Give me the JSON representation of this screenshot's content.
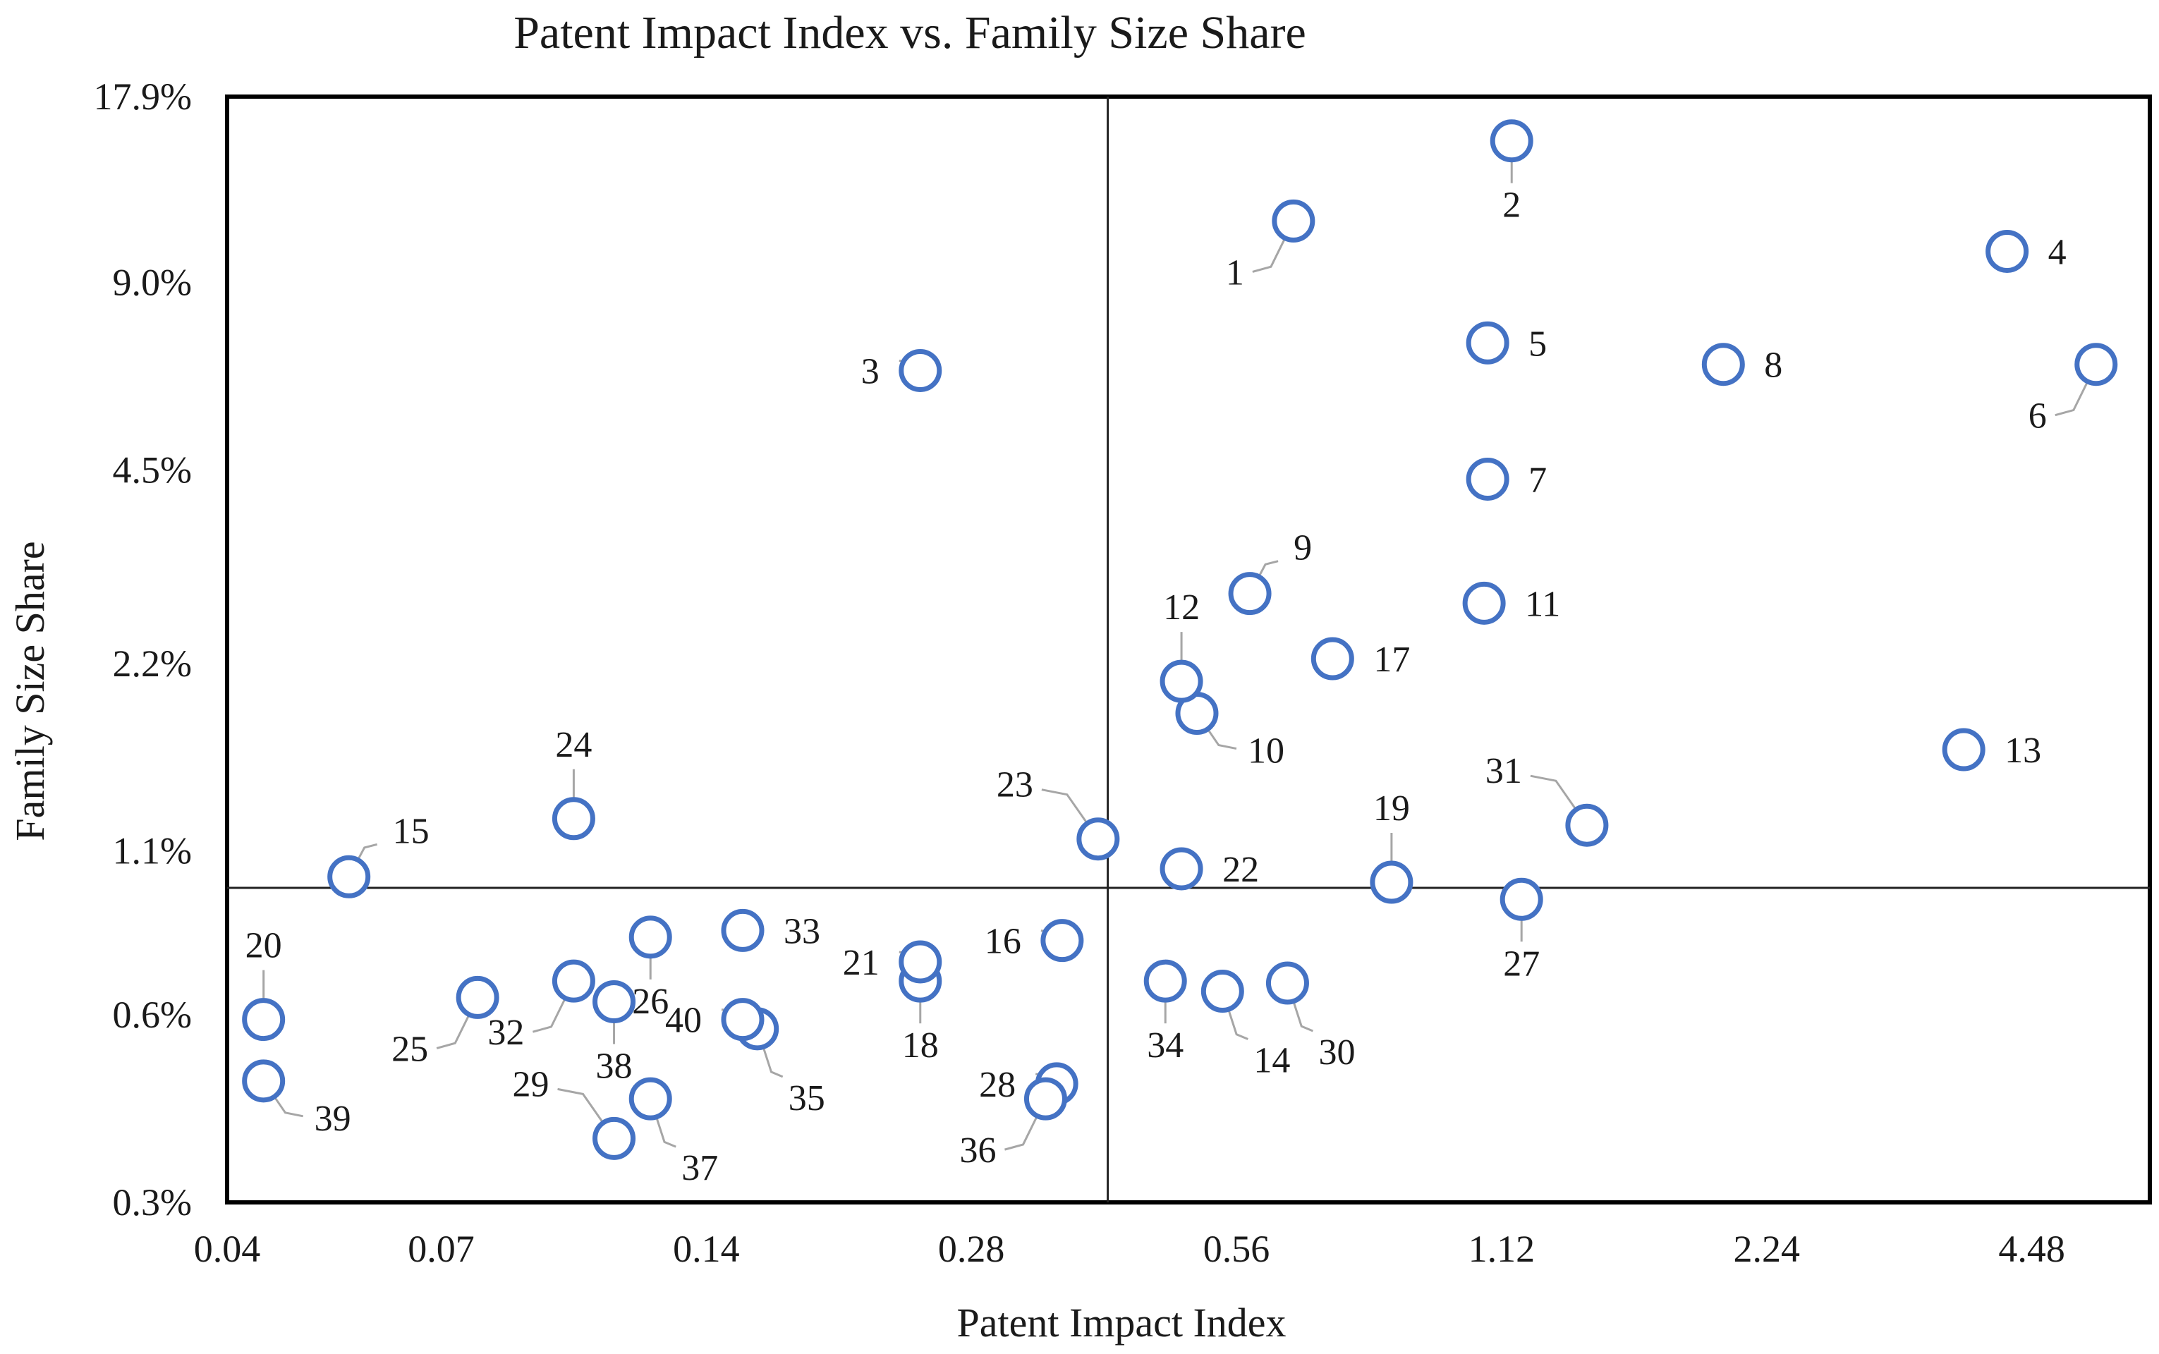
{
  "chart_data": {
    "type": "scatter",
    "title": "Patent Impact Index vs. Family Size Share",
    "xlabel": "Patent Impact Index",
    "ylabel": "Family Size Share",
    "x_scale": "log2",
    "y_scale": "log",
    "xlim": [
      0.04,
      6.1
    ],
    "ylim": [
      0.003,
      0.179
    ],
    "x_ticks": [
      {
        "value": 0.04,
        "label": "0.04"
      },
      {
        "value": 0.07,
        "label": "0.07"
      },
      {
        "value": 0.14,
        "label": "0.14"
      },
      {
        "value": 0.28,
        "label": "0.28"
      },
      {
        "value": 0.56,
        "label": "0.56"
      },
      {
        "value": 1.12,
        "label": "1.12"
      },
      {
        "value": 2.24,
        "label": "2.24"
      },
      {
        "value": 4.48,
        "label": "4.48"
      }
    ],
    "y_ticks": [
      {
        "value": 0.003,
        "label": "0.3%"
      },
      {
        "value": 0.006,
        "label": "0.6%"
      },
      {
        "value": 0.011,
        "label": "1.1%"
      },
      {
        "value": 0.022,
        "label": "2.2%"
      },
      {
        "value": 0.045,
        "label": "4.5%"
      },
      {
        "value": 0.09,
        "label": "9.0%"
      },
      {
        "value": 0.179,
        "label": "17.9%"
      }
    ],
    "quadrant_lines": {
      "x": 0.4,
      "y": 0.0096
    },
    "grid": false,
    "marker": {
      "shape": "hollow-circle",
      "color": "#4472c4"
    },
    "points": [
      {
        "label": "1",
        "x": 0.65,
        "y": 0.113,
        "label_pos": "lower-left"
      },
      {
        "label": "2",
        "x": 1.15,
        "y": 0.152,
        "label_pos": "below"
      },
      {
        "label": "3",
        "x": 0.245,
        "y": 0.065,
        "label_pos": "left"
      },
      {
        "label": "4",
        "x": 4.2,
        "y": 0.101,
        "label_pos": "right"
      },
      {
        "label": "5",
        "x": 1.08,
        "y": 0.072,
        "label_pos": "right"
      },
      {
        "label": "6",
        "x": 5.3,
        "y": 0.0665,
        "label_pos": "lower-left"
      },
      {
        "label": "7",
        "x": 1.08,
        "y": 0.0435,
        "label_pos": "right"
      },
      {
        "label": "8",
        "x": 2.0,
        "y": 0.0665,
        "label_pos": "right"
      },
      {
        "label": "9",
        "x": 0.58,
        "y": 0.0285,
        "label_pos": "upper-right"
      },
      {
        "label": "10",
        "x": 0.505,
        "y": 0.0183,
        "label_pos": "lower-right"
      },
      {
        "label": "11",
        "x": 1.07,
        "y": 0.0275,
        "label_pos": "right"
      },
      {
        "label": "12",
        "x": 0.485,
        "y": 0.0206,
        "label_pos": "above"
      },
      {
        "label": "13",
        "x": 3.75,
        "y": 0.016,
        "label_pos": "right"
      },
      {
        "label": "14",
        "x": 0.54,
        "y": 0.00655,
        "label_pos": "below-right"
      },
      {
        "label": "15",
        "x": 0.055,
        "y": 0.01,
        "label_pos": "upper-right"
      },
      {
        "label": "16",
        "x": 0.355,
        "y": 0.0079,
        "label_pos": "left"
      },
      {
        "label": "17",
        "x": 0.72,
        "y": 0.0224,
        "label_pos": "right"
      },
      {
        "label": "18",
        "x": 0.245,
        "y": 0.0068,
        "label_pos": "below"
      },
      {
        "label": "19",
        "x": 0.84,
        "y": 0.0098,
        "label_pos": "above"
      },
      {
        "label": "20",
        "x": 0.044,
        "y": 0.0059,
        "label_pos": "above"
      },
      {
        "label": "21",
        "x": 0.245,
        "y": 0.0073,
        "label_pos": "left"
      },
      {
        "label": "22",
        "x": 0.485,
        "y": 0.0103,
        "label_pos": "right"
      },
      {
        "label": "23",
        "x": 0.39,
        "y": 0.0115,
        "label_pos": "upper-left"
      },
      {
        "label": "24",
        "x": 0.099,
        "y": 0.0124,
        "label_pos": "above"
      },
      {
        "label": "25",
        "x": 0.077,
        "y": 0.0064,
        "label_pos": "lower-left"
      },
      {
        "label": "26",
        "x": 0.121,
        "y": 0.008,
        "label_pos": "below"
      },
      {
        "label": "27",
        "x": 1.18,
        "y": 0.0092,
        "label_pos": "below"
      },
      {
        "label": "28",
        "x": 0.35,
        "y": 0.00465,
        "label_pos": "left"
      },
      {
        "label": "29",
        "x": 0.11,
        "y": 0.0038,
        "label_pos": "upper-left"
      },
      {
        "label": "30",
        "x": 0.64,
        "y": 0.00675,
        "label_pos": "below-right"
      },
      {
        "label": "31",
        "x": 1.4,
        "y": 0.0121,
        "label_pos": "upper-left"
      },
      {
        "label": "32",
        "x": 0.099,
        "y": 0.0068,
        "label_pos": "lower-left"
      },
      {
        "label": "33",
        "x": 0.154,
        "y": 0.0082,
        "label_pos": "right"
      },
      {
        "label": "34",
        "x": 0.465,
        "y": 0.0068,
        "label_pos": "below"
      },
      {
        "label": "35",
        "x": 0.16,
        "y": 0.0057,
        "label_pos": "below-right"
      },
      {
        "label": "36",
        "x": 0.34,
        "y": 0.0044,
        "label_pos": "lower-left"
      },
      {
        "label": "37",
        "x": 0.121,
        "y": 0.0044,
        "label_pos": "below-right"
      },
      {
        "label": "38",
        "x": 0.11,
        "y": 0.0063,
        "label_pos": "below"
      },
      {
        "label": "39",
        "x": 0.044,
        "y": 0.0047,
        "label_pos": "lower-right"
      },
      {
        "label": "40",
        "x": 0.154,
        "y": 0.0059,
        "label_pos": "left"
      }
    ]
  }
}
